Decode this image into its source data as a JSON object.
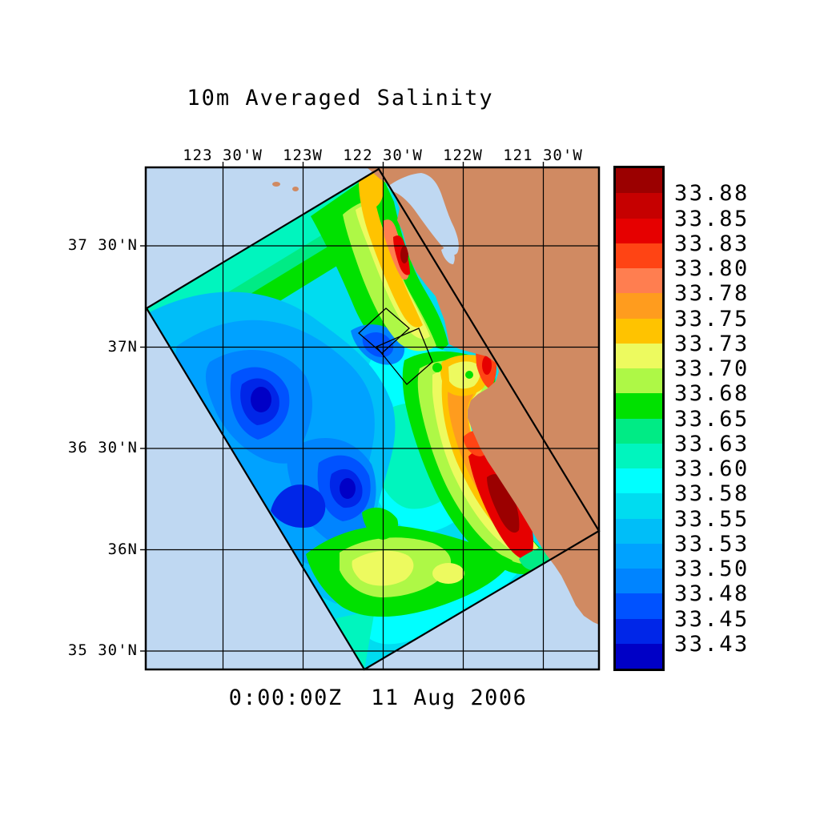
{
  "title": "10m Averaged Salinity",
  "timestamp": "0:00:00Z  11 Aug 2006",
  "map": {
    "ocean_color": "#BFD8F2",
    "land_color": "#D08A62",
    "outline_color": "#000000",
    "region": "California coast: San Francisco Bay to south of Monterey Bay",
    "overlays": [
      "model domain outline (rotated rectangle)",
      "two nested small domain outlines near Monterey Bay"
    ]
  },
  "axes": {
    "top_ticks": [
      "123 30'W",
      "123W",
      "122 30'W",
      "122W",
      "121 30'W"
    ],
    "left_ticks": [
      "37 30'N",
      "37N",
      "36 30'N",
      "36N",
      "35 30'N"
    ]
  },
  "colorbar": {
    "labels": [
      "33.88",
      "33.85",
      "33.83",
      "33.80",
      "33.78",
      "33.75",
      "33.73",
      "33.70",
      "33.68",
      "33.65",
      "33.63",
      "33.60",
      "33.58",
      "33.55",
      "33.53",
      "33.50",
      "33.48",
      "33.45",
      "33.43"
    ],
    "colors": [
      "#9B0000",
      "#C60000",
      "#E60000",
      "#FF4414",
      "#FF7E50",
      "#FF9C1E",
      "#FFC300",
      "#EDFA5F",
      "#AEF846",
      "#00E100",
      "#00EB85",
      "#00F5BE",
      "#00FFFF",
      "#00DCF0",
      "#00BEF8",
      "#00A2FF",
      "#0084FF",
      "#0052FF",
      "#0026E8",
      "#0000C6"
    ]
  },
  "chart_data": {
    "type": "heatmap",
    "title": "10m Averaged Salinity",
    "time_label": "0:00:00Z  11 Aug 2006",
    "x_ticks": [
      "123 30'W",
      "123W",
      "122 30'W",
      "122W",
      "121 30'W"
    ],
    "y_ticks": [
      "37 30'N",
      "37N",
      "36 30'N",
      "36N",
      "35 30'N"
    ],
    "colorbar_levels": [
      33.88,
      33.85,
      33.83,
      33.8,
      33.78,
      33.75,
      33.73,
      33.7,
      33.68,
      33.65,
      33.63,
      33.6,
      33.58,
      33.55,
      33.53,
      33.5,
      33.48,
      33.45,
      33.43
    ],
    "palette_top_to_bottom": [
      "#9B0000",
      "#C60000",
      "#E60000",
      "#FF4414",
      "#FF7E50",
      "#FF9C1E",
      "#FFC300",
      "#EDFA5F",
      "#AEF846",
      "#00E100",
      "#00EB85",
      "#00F5BE",
      "#00FFFF",
      "#00DCF0",
      "#00BEF8",
      "#00A2FF",
      "#0084FF",
      "#0052FF",
      "#0026E8",
      "#0000C6"
    ],
    "legend_position": "right",
    "grid": true,
    "region": "California coast near San Francisco and Monterey Bay",
    "notable_features": [
      "salinity field shown only inside rotated model-domain rectangle over ocean",
      "high salinity (~33.80-33.88, red/dark red) hugging the coast south of Monterey Bay and near San Francisco",
      "low salinity core (~33.43-33.48, dark blue) offshore in the west-central domain",
      "mid values (~33.55-33.60, cyan) over central domain; greens/yellows (~33.65-33.73) along the northern edge and southern interior"
    ]
  }
}
